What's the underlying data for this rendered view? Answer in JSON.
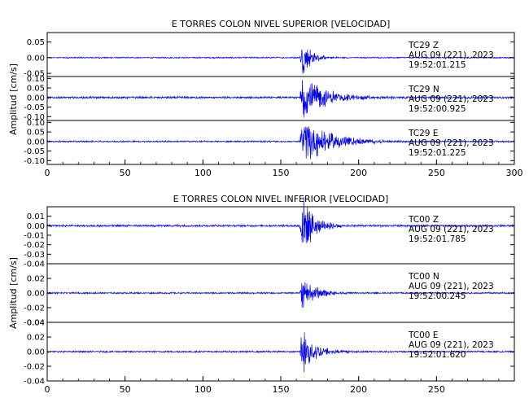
{
  "colors": {
    "trace": "#0000ee",
    "frame": "#000000",
    "background": "#ffffff"
  },
  "chart_data": [
    {
      "type": "line",
      "title": "E TORRES COLON NIVEL SUPERIOR [VELOCIDAD]",
      "ylabel": "Amplitud [cm/s]",
      "xlabel": "",
      "xlim": [
        0,
        300
      ],
      "xticks": [
        0,
        50,
        100,
        150,
        200,
        250,
        300
      ],
      "event_onset": 162,
      "grid": false,
      "series": [
        {
          "station": "TC29",
          "component": "Z",
          "date": "AUG 09 (221), 2023",
          "time": "19:52:01.215",
          "ylim": [
            -0.06,
            0.08
          ],
          "yticks": [
            -0.05,
            0.0,
            0.05
          ],
          "noise": 0.0015,
          "peak": 0.06,
          "decay": 6
        },
        {
          "station": "TC29",
          "component": "N",
          "date": "AUG 09 (221), 2023",
          "time": "19:52:00.925",
          "ylim": [
            -0.12,
            0.11
          ],
          "yticks": [
            -0.1,
            -0.05,
            0.0,
            0.05,
            0.1
          ],
          "noise": 0.004,
          "peak": 0.1,
          "decay": 15
        },
        {
          "station": "TC29",
          "component": "E",
          "date": "AUG 09 (221), 2023",
          "time": "19:52:01.225",
          "ylim": [
            -0.12,
            0.11
          ],
          "yticks": [
            -0.1,
            -0.05,
            0.0,
            0.05,
            0.1
          ],
          "noise": 0.003,
          "peak": 0.1,
          "decay": 18
        }
      ]
    },
    {
      "type": "line",
      "title": "E TORRES COLON NIVEL INFERIOR [VELOCIDAD]",
      "ylabel": "Amplitud [cm/s]",
      "xlabel": "",
      "xlim": [
        0,
        300
      ],
      "xticks": [
        0,
        50,
        100,
        150,
        200,
        250
      ],
      "event_onset": 162,
      "grid": false,
      "series": [
        {
          "station": "TC00",
          "component": "Z",
          "date": "AUG 09 (221), 2023",
          "time": "19:52:01.785",
          "ylim": [
            -0.04,
            0.02
          ],
          "yticks": [
            -0.04,
            -0.03,
            -0.02,
            -0.01,
            0.0,
            0.01
          ],
          "noise": 0.0008,
          "peak": 0.03,
          "decay": 8
        },
        {
          "station": "TC00",
          "component": "N",
          "date": "AUG 09 (221), 2023",
          "time": "19:52:00.245",
          "ylim": [
            -0.04,
            0.04
          ],
          "yticks": [
            -0.04,
            -0.02,
            0.0,
            0.02
          ],
          "noise": 0.0008,
          "peak": 0.02,
          "decay": 9
        },
        {
          "station": "TC00",
          "component": "E",
          "date": "AUG 09 (221), 2023",
          "time": "19:52:01.620",
          "ylim": [
            -0.04,
            0.04
          ],
          "yticks": [
            -0.04,
            -0.02,
            0.0,
            0.02,
            0.04
          ],
          "noise": 0.0008,
          "peak": 0.03,
          "decay": 9
        }
      ]
    }
  ]
}
